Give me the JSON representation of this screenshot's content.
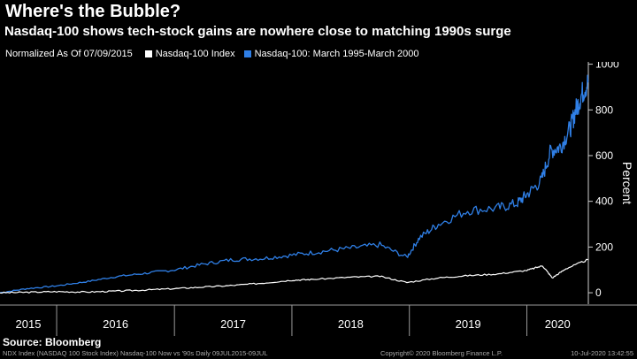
{
  "header": {
    "title": "Where's the Bubble?",
    "subtitle": "Nasdaq-100 shows tech-stock gains are nowhere close to matching 1990s surge"
  },
  "legend": {
    "note": "Normalized As Of 07/09/2015",
    "items": [
      {
        "label": "Nasdaq-100 Index",
        "color": "#ffffff"
      },
      {
        "label": "Nasdaq-100: March 1995-March 2000",
        "color": "#2f7fe6"
      }
    ]
  },
  "chart_data": {
    "type": "line",
    "ylabel": "Percent",
    "ylim": [
      -50,
      1010
    ],
    "y_ticks": [
      0,
      200,
      400,
      600,
      800,
      1000
    ],
    "y_tick_labels": [
      "0",
      "200",
      "400",
      "600",
      "800",
      "1000"
    ],
    "x_ticks": [
      "2015",
      "2016",
      "2017",
      "2018",
      "2019",
      "2020"
    ],
    "xlim": [
      "2015-07-09",
      "2020-07-10"
    ],
    "grid": false,
    "series": [
      {
        "name": "Nasdaq-100 Index",
        "color": "#ffffff",
        "x": [
          "2015-07-09",
          "2015-10-01",
          "2016-01-01",
          "2016-04-01",
          "2016-07-01",
          "2016-10-01",
          "2017-01-01",
          "2017-04-01",
          "2017-07-01",
          "2017-10-01",
          "2018-01-01",
          "2018-03-01",
          "2018-07-01",
          "2018-10-01",
          "2018-12-24",
          "2019-04-01",
          "2019-07-01",
          "2019-10-01",
          "2020-01-01",
          "2020-02-19",
          "2020-03-20",
          "2020-05-01",
          "2020-07-09"
        ],
        "values": [
          0,
          2,
          5,
          3,
          7,
          12,
          18,
          25,
          32,
          42,
          55,
          58,
          68,
          72,
          45,
          65,
          75,
          82,
          98,
          118,
          65,
          105,
          145
        ]
      },
      {
        "name": "Nasdaq-100: March 1995-March 2000",
        "color": "#2f7fe6",
        "x": [
          "2015-07-09",
          "2015-10-01",
          "2016-01-01",
          "2016-04-01",
          "2016-07-01",
          "2016-10-01",
          "2017-01-01",
          "2017-04-01",
          "2017-07-01",
          "2017-10-01",
          "2018-01-01",
          "2018-04-01",
          "2018-07-01",
          "2018-10-01",
          "2018-12-24",
          "2019-02-01",
          "2019-04-01",
          "2019-07-01",
          "2019-10-01",
          "2019-12-01",
          "2020-01-01",
          "2020-02-15",
          "2020-03-15",
          "2020-04-15",
          "2020-05-15",
          "2020-06-01",
          "2020-06-20",
          "2020-07-09"
        ],
        "values": [
          0,
          18,
          30,
          48,
          70,
          85,
          100,
          125,
          145,
          150,
          165,
          180,
          195,
          210,
          155,
          240,
          300,
          360,
          370,
          390,
          430,
          490,
          620,
          640,
          720,
          800,
          870,
          920
        ]
      }
    ]
  },
  "footer": {
    "source": "Source: Bloomberg",
    "left": "NDX Index (NASDAQ 100 Stock Index) Nasdaq-100 Now vs '90s  Daily 09JUL2015-09JUL",
    "mid": "Copyright© 2020 Bloomberg Finance L.P.",
    "right": "10-Jul-2020 13:42:55"
  }
}
